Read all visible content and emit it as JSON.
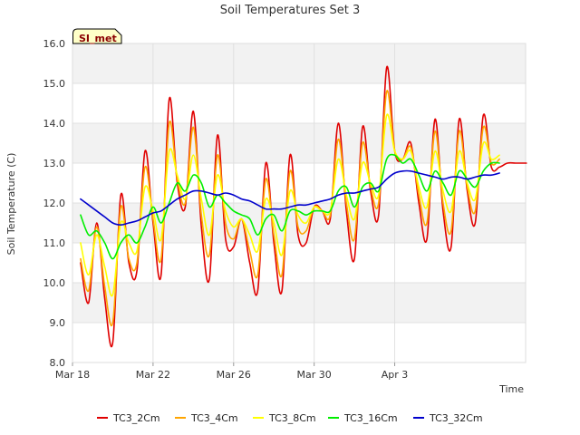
{
  "chart_data": {
    "type": "line",
    "title": "Soil Temperatures Set 3",
    "xlabel": "Time",
    "ylabel": "Soil Temperature (C)",
    "ylim": [
      8.0,
      16.0
    ],
    "yticks": [
      "8.0",
      "9.0",
      "10.0",
      "11.0",
      "12.0",
      "13.0",
      "14.0",
      "15.0",
      "16.0"
    ],
    "xlim": [
      0,
      22.5
    ],
    "xticks": [
      {
        "label": "Mar 18",
        "day": 0
      },
      {
        "label": "Mar 22",
        "day": 4
      },
      {
        "label": "Mar 26",
        "day": 8
      },
      {
        "label": "Mar 30",
        "day": 12
      },
      {
        "label": "Apr 3",
        "day": 16
      }
    ],
    "site_label": "SI_met",
    "grid": true,
    "legend_position": "bottom",
    "series": [
      {
        "name": "TC3_2Cm",
        "color": "#e00000",
        "x": [
          0.4,
          0.8,
          1.2,
          1.6,
          2.0,
          2.4,
          2.8,
          3.2,
          3.6,
          4.0,
          4.4,
          4.8,
          5.2,
          5.6,
          6.0,
          6.4,
          6.8,
          7.2,
          7.6,
          8.0,
          8.4,
          8.8,
          9.2,
          9.6,
          10.0,
          10.4,
          10.8,
          11.2,
          11.6,
          12.0,
          12.4,
          12.8,
          13.2,
          13.6,
          14.0,
          14.4,
          14.8,
          15.2,
          15.6,
          16.0,
          16.4,
          16.8,
          17.2,
          17.6,
          18.0,
          18.4,
          18.8,
          19.2,
          19.6,
          20.0,
          20.4,
          20.8,
          21.2,
          21.6,
          22.0,
          22.5,
          22.8,
          23.2
        ],
        "y": [
          10.5,
          9.5,
          11.5,
          9.6,
          8.5,
          12.2,
          10.5,
          10.3,
          13.3,
          11.5,
          10.2,
          14.6,
          12.5,
          11.9,
          14.3,
          11.4,
          10.1,
          13.7,
          11.1,
          10.9,
          11.6,
          10.5,
          9.8,
          13.0,
          11.0,
          9.8,
          13.2,
          11.2,
          11.0,
          11.9,
          11.8,
          11.6,
          14.0,
          11.8,
          10.6,
          13.9,
          12.3,
          11.7,
          15.4,
          13.3,
          13.1,
          13.5,
          12.0,
          11.1,
          14.1,
          11.8,
          10.9,
          14.1,
          12.3,
          11.5,
          14.2,
          12.9,
          12.9,
          13.0,
          13.0,
          13.0,
          13.0,
          13.0
        ]
      },
      {
        "name": "TC3_4Cm",
        "color": "#ffa500",
        "x": [
          0.4,
          0.8,
          1.2,
          1.6,
          2.0,
          2.4,
          2.8,
          3.2,
          3.6,
          4.0,
          4.4,
          4.8,
          5.2,
          5.6,
          6.0,
          6.4,
          6.8,
          7.2,
          7.6,
          8.0,
          8.4,
          8.8,
          9.2,
          9.6,
          10.0,
          10.4,
          10.8,
          11.2,
          11.6,
          12.0,
          12.4,
          12.8,
          13.2,
          13.6,
          14.0,
          14.4,
          14.8,
          15.2,
          15.6,
          16.0,
          16.4,
          16.8,
          17.2,
          17.6,
          18.0,
          18.4,
          18.8,
          19.2,
          19.6,
          20.0,
          20.4,
          20.8,
          21.2
        ],
        "y": [
          10.6,
          9.8,
          11.4,
          9.9,
          9.0,
          11.9,
          10.6,
          10.5,
          12.9,
          11.6,
          10.6,
          14.0,
          12.6,
          12.0,
          13.9,
          11.7,
          10.7,
          13.2,
          11.5,
          11.1,
          11.6,
          10.8,
          10.2,
          12.6,
          11.2,
          10.2,
          12.8,
          11.4,
          11.3,
          11.9,
          11.8,
          11.7,
          13.6,
          12.0,
          11.1,
          13.5,
          12.4,
          12.0,
          14.8,
          13.3,
          13.1,
          13.4,
          12.2,
          11.5,
          13.8,
          12.0,
          11.3,
          13.8,
          12.4,
          11.8,
          13.9,
          13.0,
          13.1
        ]
      },
      {
        "name": "TC3_8Cm",
        "color": "#ffff00",
        "x": [
          0.4,
          0.8,
          1.2,
          1.6,
          2.0,
          2.4,
          2.8,
          3.2,
          3.6,
          4.0,
          4.4,
          4.8,
          5.2,
          5.6,
          6.0,
          6.4,
          6.8,
          7.2,
          7.6,
          8.0,
          8.4,
          8.8,
          9.2,
          9.6,
          10.0,
          10.4,
          10.8,
          11.2,
          11.6,
          12.0,
          12.4,
          12.8,
          13.2,
          13.6,
          14.0,
          14.4,
          14.8,
          15.2,
          15.6,
          16.0,
          16.4,
          16.8,
          17.2,
          17.6,
          18.0,
          18.4,
          18.8,
          19.2,
          19.6,
          20.0,
          20.4,
          20.8,
          21.2
        ],
        "y": [
          11.0,
          10.2,
          11.2,
          10.4,
          9.7,
          11.5,
          11.0,
          10.8,
          12.4,
          11.8,
          11.1,
          13.3,
          12.7,
          12.1,
          13.2,
          12.1,
          11.2,
          12.7,
          11.8,
          11.4,
          11.6,
          11.2,
          10.8,
          12.1,
          11.5,
          10.7,
          12.3,
          11.7,
          11.5,
          11.9,
          11.8,
          11.8,
          13.1,
          12.2,
          11.6,
          13.0,
          12.5,
          12.2,
          14.2,
          13.3,
          13.1,
          13.3,
          12.4,
          11.9,
          13.3,
          12.3,
          11.8,
          13.3,
          12.5,
          12.1,
          13.5,
          13.1,
          13.2
        ]
      },
      {
        "name": "TC3_16Cm",
        "color": "#00ee00",
        "x": [
          0.4,
          0.8,
          1.2,
          1.6,
          2.0,
          2.4,
          2.8,
          3.2,
          3.6,
          4.0,
          4.4,
          4.8,
          5.2,
          5.6,
          6.0,
          6.4,
          6.8,
          7.2,
          7.6,
          8.0,
          8.4,
          8.8,
          9.2,
          9.6,
          10.0,
          10.4,
          10.8,
          11.2,
          11.6,
          12.0,
          12.4,
          12.8,
          13.2,
          13.6,
          14.0,
          14.4,
          14.8,
          15.2,
          15.6,
          16.0,
          16.4,
          16.8,
          17.2,
          17.6,
          18.0,
          18.4,
          18.8,
          19.2,
          19.6,
          20.0,
          20.4,
          20.8,
          21.2
        ],
        "y": [
          11.7,
          11.2,
          11.3,
          11.0,
          10.6,
          11.0,
          11.2,
          11.0,
          11.4,
          11.9,
          11.5,
          12.0,
          12.5,
          12.3,
          12.7,
          12.5,
          11.9,
          12.2,
          12.0,
          11.8,
          11.7,
          11.6,
          11.2,
          11.6,
          11.7,
          11.3,
          11.8,
          11.8,
          11.7,
          11.8,
          11.8,
          11.8,
          12.3,
          12.4,
          11.9,
          12.4,
          12.5,
          12.3,
          13.1,
          13.2,
          13.0,
          13.1,
          12.7,
          12.3,
          12.8,
          12.5,
          12.2,
          12.8,
          12.6,
          12.4,
          12.8,
          13.0,
          13.0
        ]
      },
      {
        "name": "TC3_32Cm",
        "color": "#0000cc",
        "x": [
          0.4,
          0.8,
          1.2,
          1.6,
          2.0,
          2.4,
          2.8,
          3.2,
          3.6,
          4.0,
          4.4,
          4.8,
          5.2,
          5.6,
          6.0,
          6.4,
          6.8,
          7.2,
          7.6,
          8.0,
          8.4,
          8.8,
          9.2,
          9.6,
          10.0,
          10.4,
          10.8,
          11.2,
          11.6,
          12.0,
          12.4,
          12.8,
          13.2,
          13.6,
          14.0,
          14.4,
          14.8,
          15.2,
          15.6,
          16.0,
          16.4,
          16.8,
          17.2,
          17.6,
          18.0,
          18.4,
          18.8,
          19.2,
          19.6,
          20.0,
          20.4,
          20.8,
          21.2
        ],
        "y": [
          12.1,
          11.95,
          11.8,
          11.65,
          11.5,
          11.45,
          11.5,
          11.55,
          11.65,
          11.75,
          11.8,
          11.95,
          12.1,
          12.2,
          12.3,
          12.3,
          12.25,
          12.2,
          12.25,
          12.2,
          12.1,
          12.05,
          11.95,
          11.85,
          11.85,
          11.85,
          11.9,
          11.95,
          11.95,
          12.0,
          12.05,
          12.1,
          12.2,
          12.25,
          12.25,
          12.3,
          12.35,
          12.4,
          12.6,
          12.75,
          12.8,
          12.8,
          12.75,
          12.7,
          12.65,
          12.6,
          12.65,
          12.65,
          12.6,
          12.65,
          12.7,
          12.7,
          12.75
        ]
      }
    ]
  }
}
